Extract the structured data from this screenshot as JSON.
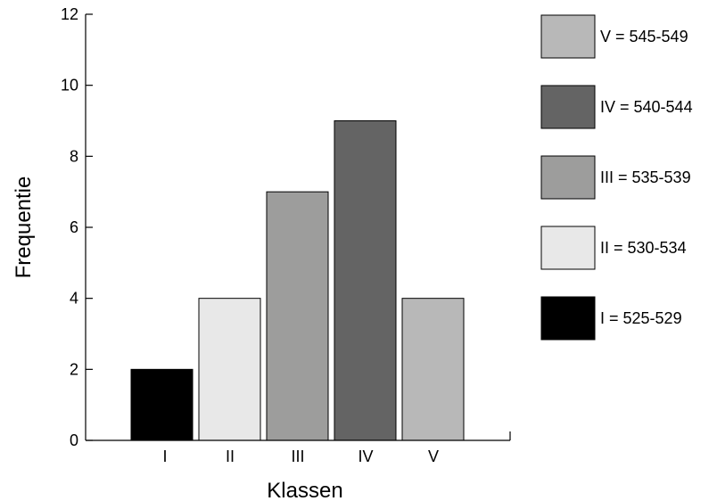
{
  "chart_data": {
    "type": "bar",
    "categories": [
      "I",
      "II",
      "III",
      "IV",
      "V"
    ],
    "values": [
      2,
      4,
      7,
      9,
      4
    ],
    "colors": [
      "#000000",
      "#e8e8e8",
      "#9d9d9c",
      "#646464",
      "#b8b8b8"
    ],
    "xlabel": "Klassen",
    "ylabel": "Frequentie",
    "ylim": [
      0,
      12
    ],
    "yticks": [
      0,
      2,
      4,
      6,
      8,
      10,
      12
    ],
    "grid": false,
    "legend_position": "right",
    "legend": [
      {
        "label": "V = 545-549",
        "color": "#b8b8b8"
      },
      {
        "label": "IV = 540-544",
        "color": "#646464"
      },
      {
        "label": "III = 535-539",
        "color": "#9d9d9c"
      },
      {
        "label": "II = 530-534",
        "color": "#e8e8e8"
      },
      {
        "label": "I = 525-529",
        "color": "#000000"
      }
    ]
  }
}
